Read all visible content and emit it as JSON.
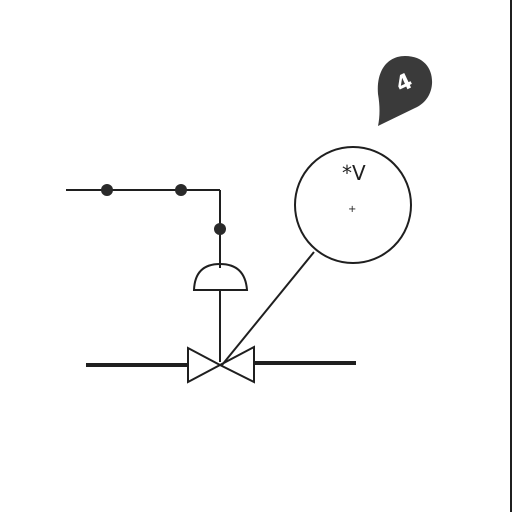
{
  "diagram": {
    "instrument_label": "*V",
    "instrument_center_mark": "+",
    "marker_label": "4"
  }
}
